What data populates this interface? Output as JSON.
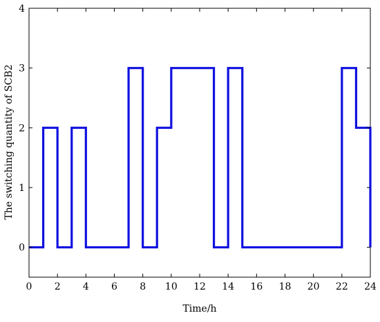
{
  "chart_data": {
    "type": "line",
    "step": true,
    "title": "",
    "xlabel": "Time/h",
    "ylabel": "The switching quantity of SCB2",
    "xlim": [
      0,
      24
    ],
    "ylim": [
      -0.5,
      4
    ],
    "xticks": [
      0,
      2,
      4,
      6,
      8,
      10,
      12,
      14,
      16,
      18,
      20,
      22,
      24
    ],
    "yticks": [
      0,
      1,
      2,
      3,
      4
    ],
    "grid": false,
    "legend": "none",
    "series_color": "#1010e0",
    "series": [
      {
        "x": [
          0,
          1,
          2,
          3,
          4,
          5,
          6,
          7,
          8,
          9,
          10,
          11,
          12,
          13,
          14,
          15,
          16,
          17,
          18,
          19,
          20,
          21,
          22,
          23,
          24
        ],
        "values": [
          0,
          2,
          0,
          2,
          0,
          0,
          0,
          3,
          0,
          2,
          3,
          3,
          3,
          0,
          3,
          0,
          0,
          0,
          0,
          0,
          0,
          0,
          3,
          2,
          0
        ]
      }
    ]
  }
}
